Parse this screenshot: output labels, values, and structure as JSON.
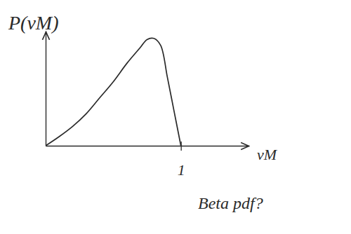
{
  "chart_data": {
    "type": "line",
    "y_label": "P(νM)",
    "x_label": "νM",
    "annotation": "Beta pdf?",
    "x": [
      0,
      0.1,
      0.2,
      0.3,
      0.4,
      0.5,
      0.6,
      0.7,
      0.75,
      0.8,
      0.85,
      0.9,
      0.95,
      1.0
    ],
    "values": [
      0,
      0.08,
      0.17,
      0.28,
      0.42,
      0.56,
      0.72,
      0.86,
      0.93,
      0.94,
      0.88,
      0.6,
      0.3,
      0
    ],
    "color": "#2a2a2a",
    "xlim": [
      0,
      1.5
    ],
    "ylim": [
      0,
      1
    ],
    "xticks": [
      1
    ],
    "tick_labels": "x"
  }
}
